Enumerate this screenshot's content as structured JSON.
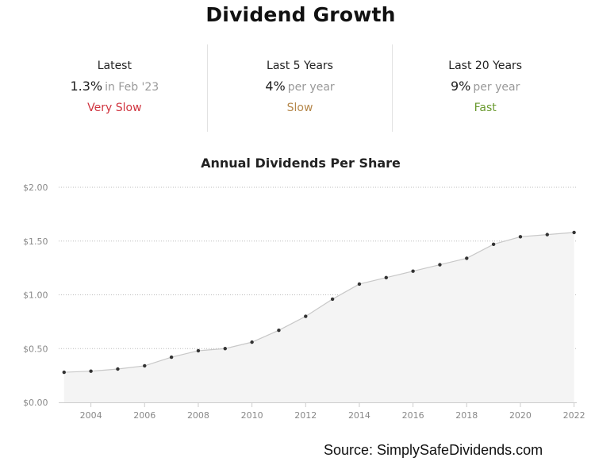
{
  "header": {
    "title": "Dividend Growth"
  },
  "stats": [
    {
      "label": "Latest",
      "value": "1.3%",
      "unit": "in Feb '23",
      "rating": "Very Slow",
      "rating_color": "#d0343f"
    },
    {
      "label": "Last 5 Years",
      "value": "4%",
      "unit": "per year",
      "rating": "Slow",
      "rating_color": "#b5874a"
    },
    {
      "label": "Last 20 Years",
      "value": "9%",
      "unit": "per year",
      "rating": "Fast",
      "rating_color": "#6a9a2f"
    }
  ],
  "chart_data": {
    "type": "area",
    "title": "Annual Dividends Per Share",
    "xlabel": "",
    "ylabel": "",
    "x": [
      2003,
      2004,
      2005,
      2006,
      2007,
      2008,
      2009,
      2010,
      2011,
      2012,
      2013,
      2014,
      2015,
      2016,
      2017,
      2018,
      2019,
      2020,
      2021,
      2022
    ],
    "series": [
      {
        "values": [
          0.28,
          0.29,
          0.31,
          0.34,
          0.42,
          0.48,
          0.5,
          0.56,
          0.67,
          0.8,
          0.96,
          1.1,
          1.16,
          1.22,
          1.28,
          1.34,
          1.47,
          1.54,
          1.56,
          1.58
        ]
      }
    ],
    "ylim": [
      0,
      2
    ],
    "yticks": [
      "$0.00",
      "$0.50",
      "$1.00",
      "$1.50",
      "$2.00"
    ],
    "xticks": [
      "2004",
      "2006",
      "2008",
      "2010",
      "2012",
      "2014",
      "2016",
      "2018",
      "2020",
      "2022"
    ],
    "grid": true,
    "colors": {
      "line": "#c8c8c8",
      "fill": "#f4f4f4",
      "point": "#333333",
      "grid": "#bbbbbb",
      "tick_text": "#888888"
    }
  },
  "footer": {
    "source": "Source: SimplySafeDividends.com"
  }
}
